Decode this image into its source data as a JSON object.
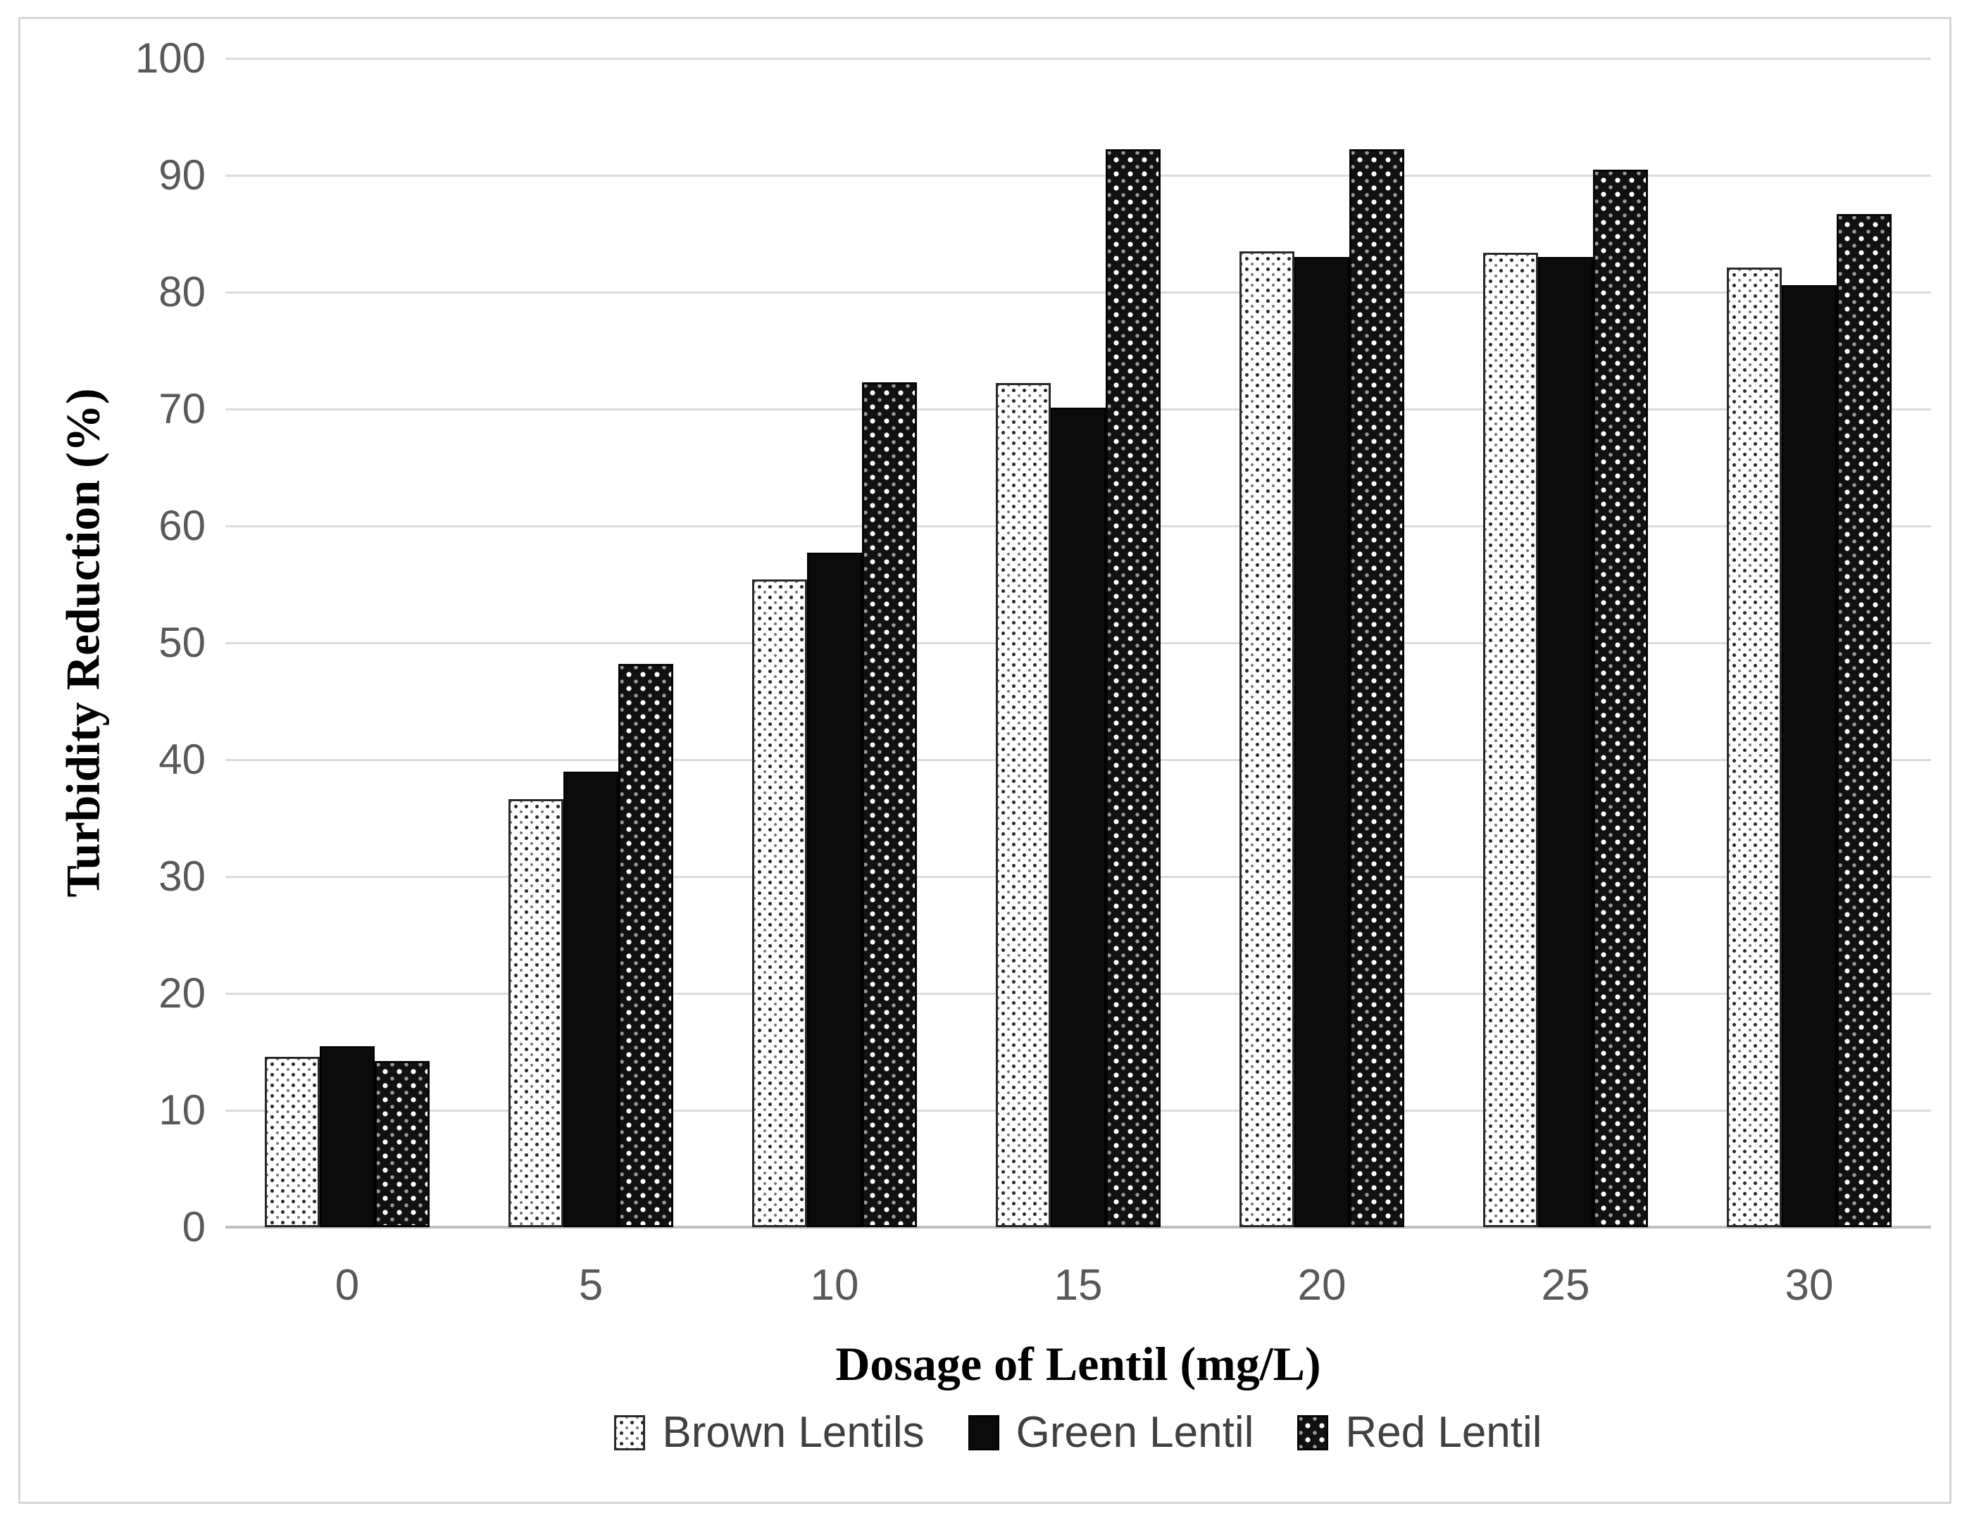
{
  "chart_data": {
    "type": "bar",
    "title": "",
    "xlabel": "Dosage of Lentil (mg/L)",
    "ylabel": "Turbidity Reduction (%)",
    "categories": [
      "0",
      "5",
      "10",
      "15",
      "20",
      "25",
      "30"
    ],
    "series": [
      {
        "name": "Brown Lentils",
        "pattern": "dot-sparse-light",
        "values": [
          14.6,
          36.6,
          55.4,
          72.2,
          83.5,
          83.4,
          82.1
        ]
      },
      {
        "name": "Green Lentil",
        "pattern": "solid-black",
        "values": [
          15.5,
          39.0,
          57.7,
          70.1,
          83.0,
          83.0,
          80.6
        ]
      },
      {
        "name": "Red Lentil",
        "pattern": "dot-dense-dark",
        "values": [
          14.2,
          48.2,
          72.3,
          92.2,
          92.2,
          90.5,
          86.7
        ]
      }
    ],
    "ylim": [
      0,
      100
    ],
    "yticks": [
      0,
      10,
      20,
      30,
      40,
      50,
      60,
      70,
      80,
      90,
      100
    ],
    "grid": true,
    "legend_position": "bottom",
    "colors": {
      "gridline": "#dcdcdc",
      "axis_line": "#bfbfbf",
      "tick_label": "#595959",
      "legend_label": "#404040",
      "axis_title": "#000000",
      "frame_border": "#d6d6d6",
      "bar_solid": "#0b0b0b",
      "background": "#ffffff"
    }
  }
}
